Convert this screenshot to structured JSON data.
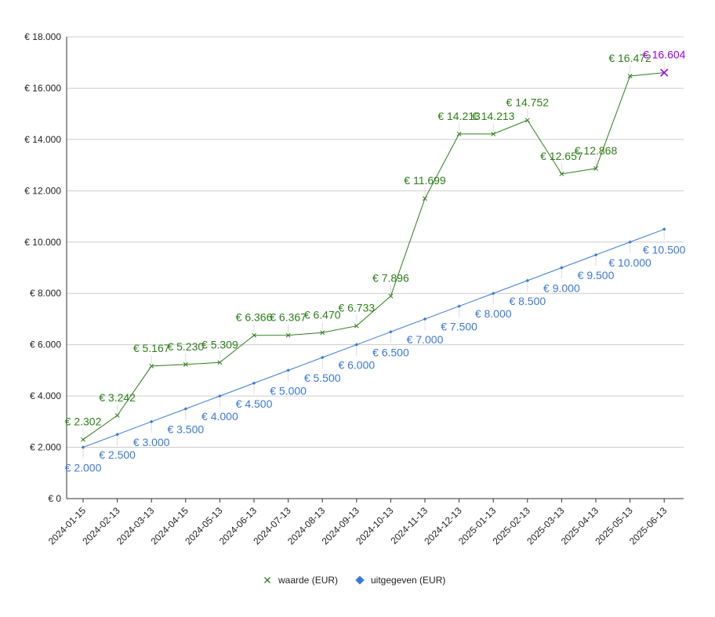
{
  "chart_data": {
    "type": "line",
    "title": "",
    "xlabel": "",
    "ylabel": "",
    "ylim": [
      0,
      18000
    ],
    "yticks": [
      0,
      2000,
      4000,
      6000,
      8000,
      10000,
      12000,
      14000,
      16000,
      18000
    ],
    "ytick_labels": [
      "€ 0",
      "€ 2.000",
      "€ 4.000",
      "€ 6.000",
      "€ 8.000",
      "€ 10.000",
      "€ 12.000",
      "€ 14.000",
      "€ 16.000",
      "€ 18.000"
    ],
    "grid": true,
    "legend_position": "bottom",
    "categories": [
      "2024-01-15",
      "2024-02-13",
      "2024-03-13",
      "2024-04-15",
      "2024-05-13",
      "2024-06-13",
      "2024-07-13",
      "2024-08-13",
      "2024-09-13",
      "2024-10-13",
      "2024-11-13",
      "2024-12-13",
      "2025-01-13",
      "2025-02-13",
      "2025-03-13",
      "2025-04-13",
      "2025-05-13",
      "2025-06-13"
    ],
    "series": [
      {
        "name": "waarde (EUR)",
        "color": "#2e7d1a",
        "marker": "x",
        "values": [
          2302,
          3242,
          5167,
          5230,
          5309,
          6366,
          6367,
          6470,
          6733,
          7896,
          11699,
          14213,
          14213,
          14752,
          12657,
          12868,
          16472,
          16604
        ],
        "labels": [
          "€ 2.302",
          "€ 3.242",
          "€ 5.167",
          "€ 5.230",
          "€ 5.309",
          "€ 6.366",
          "€ 6.367",
          "€ 6.470",
          "€ 6.733",
          "€ 7.896",
          "€ 11.699",
          "€ 14.213",
          "€ 14.213",
          "€ 14.752",
          "€ 12.657",
          "€ 12.868",
          "€ 16.472",
          "€ 16.604"
        ],
        "highlight_last_color": "#9900ee"
      },
      {
        "name": "uitgegeven (EUR)",
        "color": "#3c78d8",
        "marker": "diamond",
        "values": [
          2000,
          2500,
          3000,
          3500,
          4000,
          4500,
          5000,
          5500,
          6000,
          6500,
          7000,
          7500,
          8000,
          8500,
          9000,
          9500,
          10000,
          10500
        ],
        "labels": [
          "€ 2.000",
          "€ 2.500",
          "€ 3.000",
          "€ 3.500",
          "€ 4.000",
          "€ 4.500",
          "€ 5.000",
          "€ 5.500",
          "€ 6.000",
          "€ 6.500",
          "€ 7.000",
          "€ 7.500",
          "€ 8.000",
          "€ 8.500",
          "€ 9.000",
          "€ 9.500",
          "€ 10.000",
          "€ 10.500"
        ]
      }
    ]
  }
}
